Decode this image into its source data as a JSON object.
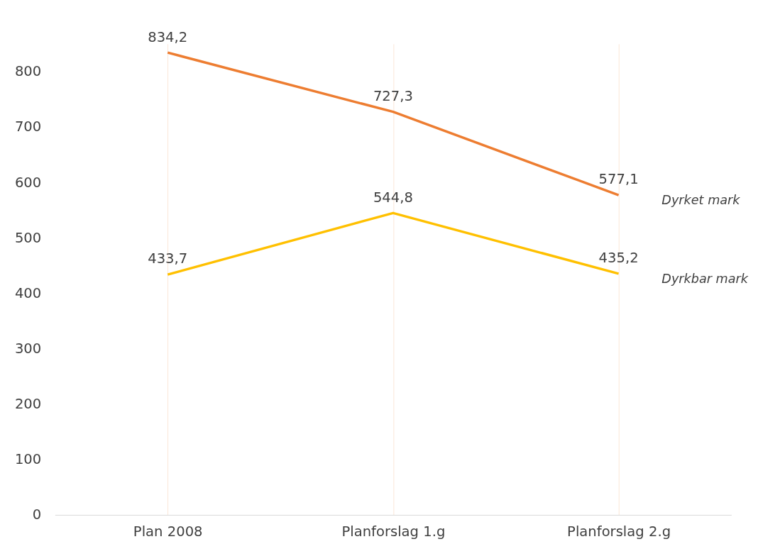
{
  "chart_data": {
    "type": "line",
    "categories": [
      "Plan 2008",
      "Planforslag 1.g",
      "Planforslag 2.g"
    ],
    "series": [
      {
        "name": "Dyrket mark",
        "color": "#ed7d31",
        "values": [
          834.2,
          727.3,
          577.1
        ],
        "value_labels": [
          "834,2",
          "727,3",
          "577,1"
        ]
      },
      {
        "name": "Dyrkbar mark",
        "color": "#ffc000",
        "values": [
          433.7,
          544.8,
          435.2
        ],
        "value_labels": [
          "433,7",
          "544,8",
          "435,2"
        ]
      }
    ],
    "ylim": [
      0,
      850
    ],
    "yticks": [
      0,
      100,
      200,
      300,
      400,
      500,
      600,
      700,
      800
    ],
    "grid": "x",
    "legend": false,
    "marker": "none",
    "line_style": "solid"
  }
}
